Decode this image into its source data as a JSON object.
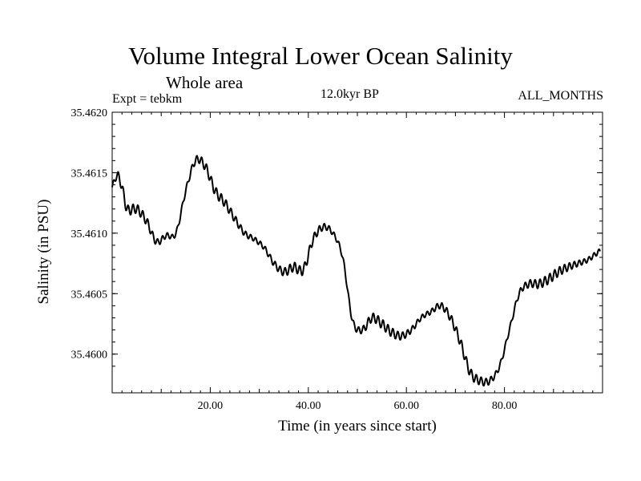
{
  "chart_data": {
    "type": "line",
    "title": "Volume Integral Lower Ocean Salinity",
    "subtitle": "Whole area",
    "annotations": {
      "left": "Expt = tebkm",
      "center": "12.0kyr BP",
      "right": "ALL_MONTHS"
    },
    "xlabel": "Time (in years since start)",
    "ylabel": "Salinity (in PSU)",
    "xlim": [
      0,
      100
    ],
    "ylim": [
      35.45968,
      35.462
    ],
    "x_ticks": [
      20,
      40,
      60,
      80
    ],
    "x_tick_labels": [
      "20.00",
      "40.00",
      "60.00",
      "80.00"
    ],
    "y_ticks": [
      35.46,
      35.4605,
      35.461,
      35.4615,
      35.462
    ],
    "y_tick_labels": [
      "35.4600",
      "35.4605",
      "35.4610",
      "35.4615",
      "35.4620"
    ],
    "grid": false,
    "series": [
      {
        "name": "Salinity",
        "color": "#000000",
        "oscillation_amplitude": 4e-05,
        "oscillation_period": 1,
        "x": [
          0,
          1,
          2,
          3,
          5,
          7,
          9,
          11,
          13,
          15,
          17,
          19,
          21,
          23,
          25,
          27,
          29,
          31,
          33,
          35,
          37,
          39,
          41,
          43,
          45,
          47,
          49,
          51,
          53,
          55,
          57,
          59,
          61,
          63,
          65,
          67,
          69,
          71,
          73,
          75,
          77,
          79,
          81,
          83,
          85,
          87,
          89,
          91,
          93,
          95,
          97,
          99.5
        ],
        "y": [
          35.46138,
          35.46148,
          35.46138,
          35.4612,
          35.4612,
          35.4611,
          35.46093,
          35.46098,
          35.461,
          35.46135,
          35.4616,
          35.46155,
          35.46135,
          35.46125,
          35.46112,
          35.461,
          35.46095,
          35.46088,
          35.46075,
          35.46068,
          35.46072,
          35.4607,
          35.46095,
          35.46105,
          35.461,
          35.4608,
          35.46028,
          35.4602,
          35.4603,
          35.46025,
          35.46018,
          35.46015,
          35.4602,
          35.4603,
          35.46035,
          35.4604,
          35.4603,
          35.4601,
          35.45985,
          35.45978,
          35.45978,
          35.4599,
          35.4602,
          35.4605,
          35.46058,
          35.46058,
          35.46062,
          35.46068,
          35.46072,
          35.46075,
          35.46078,
          35.46085
        ]
      }
    ]
  }
}
